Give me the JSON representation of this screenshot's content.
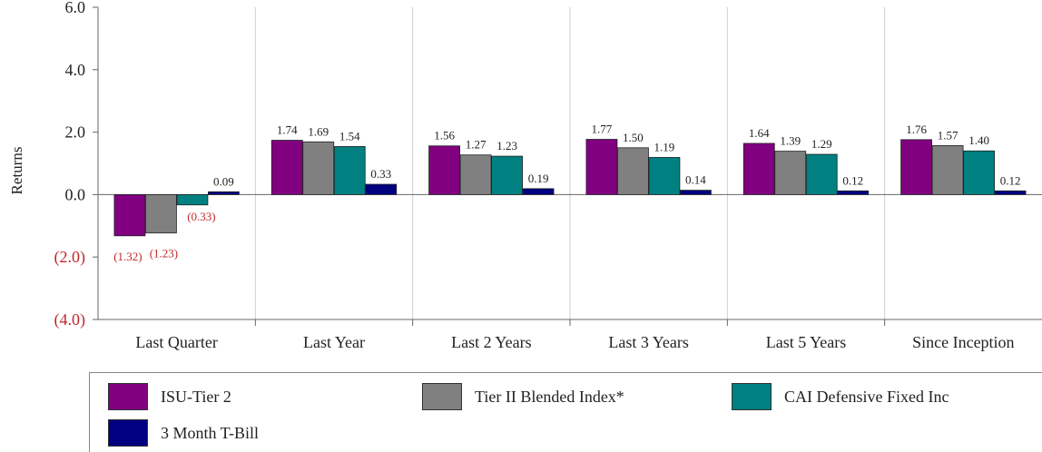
{
  "chart_data": {
    "type": "bar",
    "ylabel": "Returns",
    "ylim": [
      -4.0,
      6.0
    ],
    "yticks": [
      {
        "value": 6.0,
        "label": "6.0"
      },
      {
        "value": 4.0,
        "label": "4.0"
      },
      {
        "value": 2.0,
        "label": "2.0"
      },
      {
        "value": 0.0,
        "label": "0.0"
      },
      {
        "value": -2.0,
        "label": "(2.0)"
      },
      {
        "value": -4.0,
        "label": "(4.0)"
      }
    ],
    "categories": [
      "Last Quarter",
      "Last Year",
      "Last 2 Years",
      "Last 3 Years",
      "Last 5 Years",
      "Since Inception"
    ],
    "series": [
      {
        "name": "ISU-Tier 2",
        "color": "#800080",
        "values": [
          -1.32,
          1.74,
          1.56,
          1.77,
          1.64,
          1.76
        ],
        "labels": [
          "(1.32)",
          "1.74",
          "1.56",
          "1.77",
          "1.64",
          "1.76"
        ]
      },
      {
        "name": "Tier II Blended Index*",
        "color": "#808080",
        "values": [
          -1.23,
          1.69,
          1.27,
          1.5,
          1.39,
          1.57
        ],
        "labels": [
          "(1.23)",
          "1.69",
          "1.27",
          "1.50",
          "1.39",
          "1.57"
        ]
      },
      {
        "name": "CAI Defensive Fixed Inc",
        "color": "#008080",
        "values": [
          -0.33,
          1.54,
          1.23,
          1.19,
          1.29,
          1.4
        ],
        "labels": [
          "(0.33)",
          "1.54",
          "1.23",
          "1.19",
          "1.29",
          "1.40"
        ]
      },
      {
        "name": "3 Month T-Bill",
        "color": "#000080",
        "values": [
          0.09,
          0.33,
          0.19,
          0.14,
          0.12,
          0.12
        ],
        "labels": [
          "0.09",
          "0.33",
          "0.19",
          "0.14",
          "0.12",
          "0.12"
        ]
      }
    ],
    "negative_label_color": "#c0282a",
    "grid": "vertical",
    "legend_position": "bottom"
  }
}
